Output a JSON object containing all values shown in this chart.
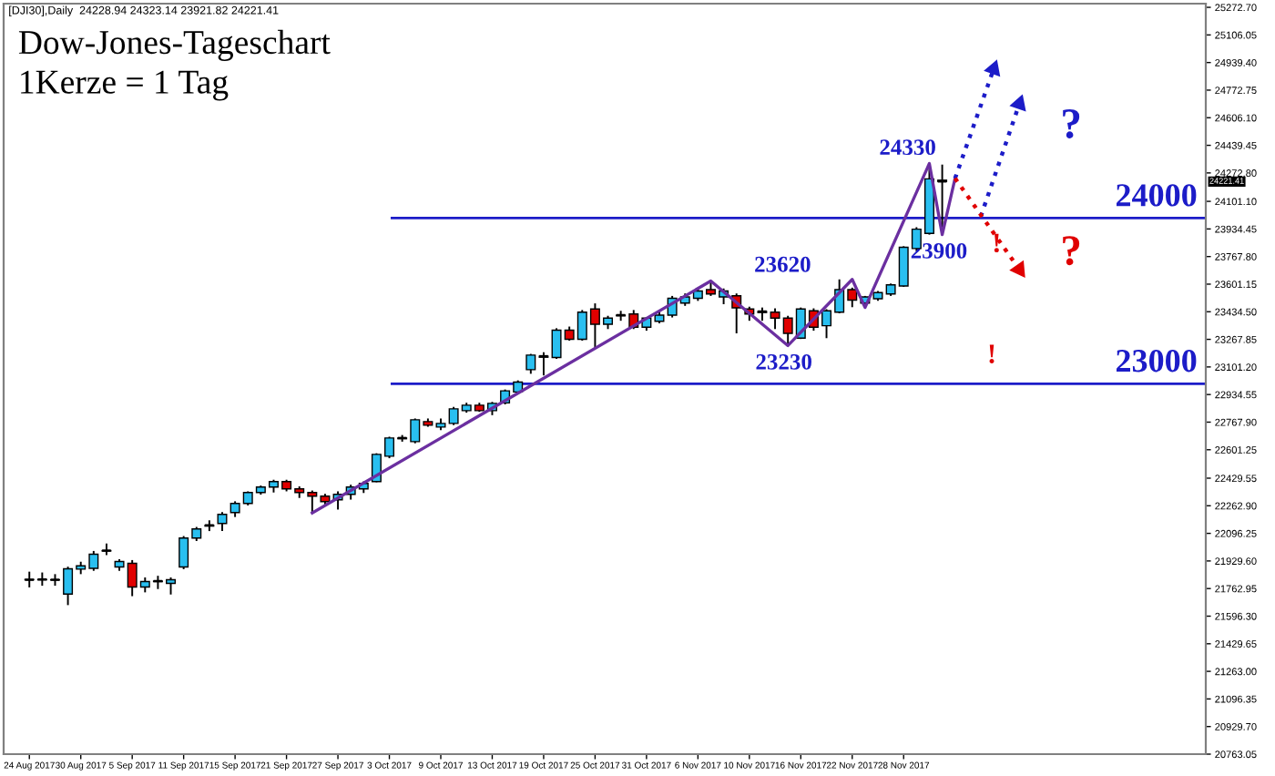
{
  "chart_data": {
    "type": "candlestick",
    "title": "Dow-Jones-Tageschart",
    "subtitle": "1Kerze = 1 Tag",
    "categories": [
      "24 Aug 2017",
      null,
      null,
      null,
      "30 Aug 2017",
      null,
      null,
      null,
      "5 Sep 2017",
      null,
      null,
      null,
      "11 Sep 2017",
      null,
      null,
      null,
      "15 Sep 2017",
      null,
      null,
      null,
      "21 Sep 2017",
      null,
      null,
      null,
      "27 Sep 2017",
      null,
      null,
      null,
      "3 Oct 2017",
      null,
      null,
      null,
      "9 Oct 2017",
      null,
      null,
      null,
      "13 Oct 2017",
      null,
      null,
      null,
      "19 Oct 2017",
      null,
      null,
      null,
      "25 Oct 2017",
      null,
      null,
      null,
      "31 Oct 2017",
      null,
      null,
      null,
      "6 Nov 2017",
      null,
      null,
      null,
      "10 Nov 2017",
      null,
      null,
      null,
      "16 Nov 2017",
      null,
      null,
      null,
      "22 Nov 2017",
      null,
      null,
      null,
      "28 Nov 2017",
      null,
      null,
      null,
      null,
      null,
      null,
      null,
      null,
      null,
      null,
      null,
      null,
      null,
      null,
      null,
      null,
      null,
      null,
      null,
      null,
      null,
      null,
      null
    ],
    "ohlc": [
      [
        21818,
        21865,
        21770,
        21816
      ],
      [
        21816,
        21860,
        21780,
        21818
      ],
      [
        21815,
        21850,
        21780,
        21816
      ],
      [
        21730,
        21895,
        21663,
        21882
      ],
      [
        21880,
        21925,
        21850,
        21900
      ],
      [
        21885,
        21990,
        21870,
        21970
      ],
      [
        21990,
        22035,
        21965,
        21992
      ],
      [
        21893,
        21940,
        21870,
        21926
      ],
      [
        21915,
        21935,
        21717,
        21772
      ],
      [
        21772,
        21830,
        21740,
        21805
      ],
      [
        21805,
        21840,
        21760,
        21808
      ],
      [
        21794,
        21830,
        21727,
        21816
      ],
      [
        21893,
        22080,
        21880,
        22068
      ],
      [
        22068,
        22135,
        22050,
        22123
      ],
      [
        22140,
        22175,
        22110,
        22145
      ],
      [
        22156,
        22225,
        22110,
        22211
      ],
      [
        22222,
        22290,
        22195,
        22277
      ],
      [
        22277,
        22350,
        22265,
        22343
      ],
      [
        22343,
        22385,
        22330,
        22376
      ],
      [
        22376,
        22420,
        22343,
        22409
      ],
      [
        22409,
        22420,
        22350,
        22365
      ],
      [
        22365,
        22380,
        22310,
        22343
      ],
      [
        22343,
        22355,
        22222,
        22321
      ],
      [
        22321,
        22335,
        22270,
        22288
      ],
      [
        22299,
        22350,
        22240,
        22332
      ],
      [
        22332,
        22390,
        22300,
        22376
      ],
      [
        22365,
        22410,
        22340,
        22398
      ],
      [
        22409,
        22580,
        22405,
        22573
      ],
      [
        22562,
        22680,
        22550,
        22672
      ],
      [
        22668,
        22690,
        22650,
        22672
      ],
      [
        22650,
        22790,
        22640,
        22782
      ],
      [
        22771,
        22790,
        22740,
        22749
      ],
      [
        22738,
        22790,
        22720,
        22760
      ],
      [
        22760,
        22860,
        22750,
        22848
      ],
      [
        22837,
        22885,
        22825,
        22870
      ],
      [
        22870,
        22885,
        22830,
        22837
      ],
      [
        22837,
        22890,
        22810,
        22881
      ],
      [
        22884,
        22965,
        22875,
        22957
      ],
      [
        22950,
        23020,
        22940,
        23010
      ],
      [
        23085,
        23180,
        23060,
        23173
      ],
      [
        23160,
        23190,
        23050,
        23166
      ],
      [
        23158,
        23335,
        23150,
        23323
      ],
      [
        23323,
        23345,
        23260,
        23268
      ],
      [
        23268,
        23445,
        23260,
        23432
      ],
      [
        23451,
        23485,
        23213,
        23359
      ],
      [
        23359,
        23410,
        23330,
        23396
      ],
      [
        23410,
        23440,
        23380,
        23414
      ],
      [
        23421,
        23445,
        23330,
        23341
      ],
      [
        23341,
        23400,
        23320,
        23396
      ],
      [
        23377,
        23440,
        23365,
        23414
      ],
      [
        23414,
        23530,
        23400,
        23516
      ],
      [
        23487,
        23545,
        23470,
        23524
      ],
      [
        23516,
        23575,
        23500,
        23560
      ],
      [
        23568,
        23615,
        23530,
        23542
      ],
      [
        23524,
        23575,
        23480,
        23560
      ],
      [
        23531,
        23545,
        23304,
        23458
      ],
      [
        23451,
        23465,
        23380,
        23421
      ],
      [
        23430,
        23460,
        23380,
        23436
      ],
      [
        23432,
        23455,
        23330,
        23396
      ],
      [
        23396,
        23410,
        23230,
        23304
      ],
      [
        23275,
        23460,
        23270,
        23451
      ],
      [
        23440,
        23455,
        23320,
        23341
      ],
      [
        23350,
        23450,
        23275,
        23440
      ],
      [
        23432,
        23630,
        23425,
        23568
      ],
      [
        23568,
        23580,
        23462,
        23505
      ],
      [
        23487,
        23530,
        23480,
        23524
      ],
      [
        23513,
        23560,
        23500,
        23550
      ],
      [
        23542,
        23605,
        23530,
        23597
      ],
      [
        23590,
        23830,
        23585,
        23824
      ],
      [
        23816,
        23945,
        23800,
        23933
      ],
      [
        23908,
        24330,
        23900,
        24237
      ],
      [
        24228.94,
        24323.14,
        23921.82,
        24221.41
      ],
      null,
      null,
      null,
      null,
      null,
      null,
      null,
      null,
      null,
      null,
      null,
      null,
      null,
      null,
      null,
      null,
      null,
      null,
      null,
      null
    ],
    "colors": [
      "#000000",
      "#000000",
      "#000000",
      "#29bff0",
      "#29bff0",
      "#29bff0",
      "#000000",
      "#29bff0",
      "#e00000",
      "#29bff0",
      "#000000",
      "#29bff0",
      "#29bff0",
      "#29bff0",
      "#000000",
      "#29bff0",
      "#29bff0",
      "#29bff0",
      "#29bff0",
      "#29bff0",
      "#e00000",
      "#e00000",
      "#e00000",
      "#e00000",
      "#29bff0",
      "#29bff0",
      "#29bff0",
      "#29bff0",
      "#29bff0",
      "#000000",
      "#29bff0",
      "#e00000",
      "#29bff0",
      "#29bff0",
      "#29bff0",
      "#e00000",
      "#29bff0",
      "#29bff0",
      "#29bff0",
      "#29bff0",
      "#000000",
      "#29bff0",
      "#e00000",
      "#29bff0",
      "#e00000",
      "#29bff0",
      "#000000",
      "#e00000",
      "#29bff0",
      "#29bff0",
      "#29bff0",
      "#29bff0",
      "#29bff0",
      "#e00000",
      "#29bff0",
      "#e00000",
      "#e00000",
      "#000000",
      "#e00000",
      "#e00000",
      "#29bff0",
      "#e00000",
      "#29bff0",
      "#29bff0",
      "#e00000",
      "#29bff0",
      "#29bff0",
      "#29bff0",
      "#29bff0",
      "#29bff0",
      "#29bff0",
      "#000000",
      null,
      null,
      null,
      null,
      null,
      null,
      null,
      null,
      null,
      null,
      null,
      null,
      null,
      null,
      null,
      null,
      null,
      null,
      null,
      null
    ],
    "series": [
      {
        "type": "line",
        "color": "#6b2fa0",
        "line_style": "solid",
        "values": [
          null,
          null,
          null,
          null,
          null,
          null,
          null,
          null,
          null,
          null,
          null,
          null,
          null,
          null,
          null,
          null,
          null,
          null,
          null,
          null,
          null,
          null,
          22220,
          null,
          null,
          null,
          null,
          null,
          null,
          null,
          null,
          null,
          null,
          null,
          null,
          null,
          null,
          null,
          null,
          null,
          null,
          null,
          null,
          null,
          null,
          null,
          null,
          null,
          null,
          null,
          null,
          null,
          null,
          23620,
          null,
          null,
          null,
          null,
          null,
          23230,
          null,
          null,
          null,
          null,
          23630,
          23460,
          null,
          null,
          null,
          null,
          24330,
          23900,
          24240,
          null,
          null,
          null,
          null,
          null,
          null,
          null,
          null,
          null,
          null,
          null,
          null,
          null,
          null,
          null,
          null,
          null,
          null,
          null
        ]
      },
      {
        "type": "line",
        "color": "#1c1cc8",
        "line_style": "dotted",
        "values": [
          null,
          null,
          null,
          null,
          null,
          null,
          null,
          null,
          null,
          null,
          null,
          null,
          null,
          null,
          null,
          null,
          null,
          null,
          null,
          null,
          null,
          null,
          null,
          null,
          null,
          null,
          null,
          null,
          null,
          null,
          null,
          null,
          null,
          null,
          null,
          null,
          null,
          null,
          null,
          null,
          null,
          null,
          null,
          null,
          null,
          null,
          null,
          null,
          null,
          null,
          null,
          null,
          null,
          null,
          null,
          null,
          null,
          null,
          null,
          null,
          null,
          null,
          null,
          null,
          null,
          null,
          null,
          null,
          null,
          null,
          null,
          null,
          24240,
          null,
          null,
          24900,
          null,
          null,
          null,
          null,
          null,
          null,
          null,
          null,
          null,
          null,
          null,
          null,
          null,
          null,
          null,
          null
        ]
      },
      {
        "type": "line",
        "color": "#1c1cc8",
        "line_style": "dotted",
        "values": [
          null,
          null,
          null,
          null,
          null,
          null,
          null,
          null,
          null,
          null,
          null,
          null,
          null,
          null,
          null,
          null,
          null,
          null,
          null,
          null,
          null,
          null,
          null,
          null,
          null,
          null,
          null,
          null,
          null,
          null,
          null,
          null,
          null,
          null,
          null,
          null,
          null,
          null,
          null,
          null,
          null,
          null,
          null,
          null,
          null,
          null,
          null,
          null,
          null,
          null,
          null,
          null,
          null,
          null,
          null,
          null,
          null,
          null,
          null,
          null,
          null,
          null,
          null,
          null,
          null,
          null,
          null,
          null,
          null,
          null,
          null,
          null,
          null,
          null,
          24010,
          null,
          null,
          24690,
          null,
          null,
          null,
          null,
          null,
          null,
          null,
          null,
          null,
          null,
          null,
          null,
          null,
          null
        ]
      },
      {
        "type": "line",
        "color": "#e00000",
        "line_style": "dotted",
        "values": [
          null,
          null,
          null,
          null,
          null,
          null,
          null,
          null,
          null,
          null,
          null,
          null,
          null,
          null,
          null,
          null,
          null,
          null,
          null,
          null,
          null,
          null,
          null,
          null,
          null,
          null,
          null,
          null,
          null,
          null,
          null,
          null,
          null,
          null,
          null,
          null,
          null,
          null,
          null,
          null,
          null,
          null,
          null,
          null,
          null,
          null,
          null,
          null,
          null,
          null,
          null,
          null,
          null,
          null,
          null,
          null,
          null,
          null,
          null,
          null,
          null,
          null,
          null,
          null,
          null,
          null,
          null,
          null,
          null,
          null,
          null,
          null,
          24240,
          null,
          null,
          null,
          null,
          23690,
          null,
          null,
          null,
          null,
          null,
          null,
          null,
          null,
          null,
          null,
          null,
          null,
          null,
          null
        ]
      }
    ],
    "ref_lines": [
      {
        "axis": "y",
        "value": 24000,
        "label": "24000",
        "color": "#1c1cc8"
      },
      {
        "axis": "y",
        "value": 23000,
        "label": "23000",
        "color": "#1c1cc8"
      }
    ],
    "annotations": [
      "[DJI30],Daily  24228.94 24323.14 23921.82 24221.41",
      "24330",
      "23900",
      "23620",
      "23230",
      "!",
      "!",
      "?",
      "?",
      "24221.41"
    ],
    "ylim": [
      20763.05,
      25295
    ],
    "yticks": [
      {
        "value": 20763.05,
        "label": "20763.05"
      },
      {
        "value": 20929.7,
        "label": "20929.70"
      },
      {
        "value": 21096.35,
        "label": "21096.35"
      },
      {
        "value": 21263.0,
        "label": "21263.00"
      },
      {
        "value": 21429.65,
        "label": "21429.65"
      },
      {
        "value": 21596.3,
        "label": "21596.30"
      },
      {
        "value": 21762.95,
        "label": "21762.95"
      },
      {
        "value": 21929.6,
        "label": "21929.60"
      },
      {
        "value": 22096.25,
        "label": "22096.25"
      },
      {
        "value": 22262.9,
        "label": "22262.90"
      },
      {
        "value": 22429.55,
        "label": "22429.55"
      },
      {
        "value": 22601.25,
        "label": "22601.25"
      },
      {
        "value": 22767.9,
        "label": "22767.90"
      },
      {
        "value": 22934.55,
        "label": "22934.55"
      },
      {
        "value": 23101.2,
        "label": "23101.20"
      },
      {
        "value": 23267.85,
        "label": "23267.85"
      },
      {
        "value": 23434.5,
        "label": "23434.50"
      },
      {
        "value": 23601.15,
        "label": "23601.15"
      },
      {
        "value": 23767.8,
        "label": "23767.80"
      },
      {
        "value": 23934.45,
        "label": "23934.45"
      },
      {
        "value": 24101.1,
        "label": "24101.10"
      },
      {
        "value": 24272.8,
        "label": "24272.80"
      },
      {
        "value": 24439.45,
        "label": "24439.45"
      },
      {
        "value": 24606.1,
        "label": "24606.10"
      },
      {
        "value": 24772.75,
        "label": "24772.75"
      },
      {
        "value": 24939.4,
        "label": "24939.40"
      },
      {
        "value": 25106.05,
        "label": "25106.05"
      },
      {
        "value": 25272.7,
        "label": "25272.70"
      }
    ],
    "grid": false
  }
}
